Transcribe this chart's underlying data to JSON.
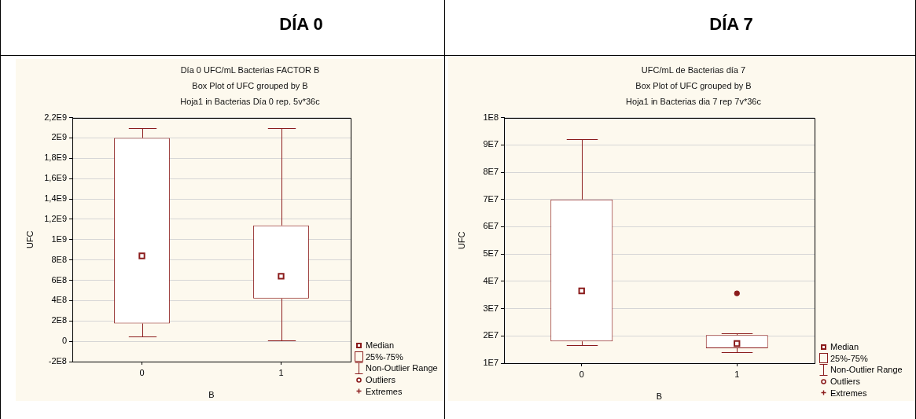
{
  "chart_data": [
    {
      "type": "box",
      "title": "DÍA 0",
      "subtitle": "Día 0 UFC/mL Bacterias FACTOR B\nBox Plot of UFC grouped by B\nHoja1 in Bacterias Día 0 rep. 5v*36c",
      "xlabel": "B",
      "ylabel": "UFC",
      "categories": [
        "0",
        "1"
      ],
      "color": "#8b1c1c",
      "boxes": [
        {
          "low": 50000000,
          "q1": 175000000,
          "median": 840000000,
          "q3": 2000000000,
          "high": 2100000000
        },
        {
          "low": 10000000,
          "q1": 420000000,
          "median": 640000000,
          "q3": 1140000000,
          "high": 2100000000
        }
      ],
      "ylim": [
        -200000000,
        2200000000
      ],
      "yticks": [
        {
          "value": -200000000,
          "label": "-2E8"
        },
        0,
        {
          "value": 200000000,
          "label": "2E8"
        },
        {
          "value": 400000000,
          "label": "4E8"
        },
        {
          "value": 600000000,
          "label": "6E8"
        },
        {
          "value": 800000000,
          "label": "8E8"
        },
        {
          "value": 1000000000,
          "label": "1E9"
        },
        {
          "value": 1200000000,
          "label": "1,2E9"
        },
        {
          "value": 1400000000,
          "label": "1,4E9"
        },
        {
          "value": 1600000000,
          "label": "1,6E9"
        },
        {
          "value": 1800000000,
          "label": "1,8E9"
        },
        {
          "value": 2000000000,
          "label": "2E9"
        },
        {
          "value": 2200000000,
          "label": "2,2E9"
        }
      ],
      "grid": "y",
      "annotations": [
        "Median",
        "25%-75%",
        "Non-Outlier Range",
        "Outliers",
        "Extremes"
      ]
    },
    {
      "type": "box",
      "title": "DÍA 7",
      "subtitle": "UFC/mL de Bacterias día 7\nBox Plot of UFC grouped by B\nHoja1 in Bacterias dia 7 rep 7v*36c",
      "xlabel": "B",
      "ylabel": "UFC",
      "categories": [
        "0",
        "1"
      ],
      "color": "#8b1c1c",
      "boxes": [
        {
          "low": 16500000,
          "q1": 18000000,
          "median": 36500000,
          "q3": 70000000,
          "high": 92000000
        },
        {
          "low": 14000000,
          "q1": 15500000,
          "median": 17200000,
          "q3": 20300000,
          "high": 21000000,
          "outliers": [
            35600000
          ]
        }
      ],
      "ylim": [
        10000000,
        100000000
      ],
      "yticks": [
        {
          "value": 10000000,
          "label": "1E7"
        },
        {
          "value": 20000000,
          "label": "2E7"
        },
        {
          "value": 30000000,
          "label": "3E7"
        },
        {
          "value": 40000000,
          "label": "4E7"
        },
        {
          "value": 50000000,
          "label": "5E7"
        },
        {
          "value": 60000000,
          "label": "6E7"
        },
        {
          "value": 70000000,
          "label": "7E7"
        },
        {
          "value": 80000000,
          "label": "8E7"
        },
        {
          "value": 90000000,
          "label": "9E7"
        },
        {
          "value": 100000000,
          "label": "1E8"
        }
      ],
      "grid": "y",
      "annotations": [
        "Median",
        "25%-75%",
        "Non-Outlier Range",
        "Outliers",
        "Extremes"
      ]
    }
  ]
}
